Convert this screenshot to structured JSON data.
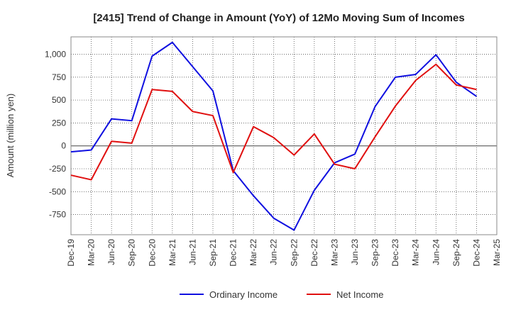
{
  "chart_data": {
    "type": "line",
    "title": "[2415]  Trend of Change in Amount (YoY) of 12Mo Moving Sum of Incomes",
    "xlabel": "",
    "ylabel": "Amount (million yen)",
    "x": [
      "Dec-19",
      "Mar-20",
      "Jun-20",
      "Sep-20",
      "Dec-20",
      "Mar-21",
      "Jun-21",
      "Sep-21",
      "Dec-21",
      "Mar-22",
      "Jun-22",
      "Sep-22",
      "Dec-22",
      "Mar-23",
      "Jun-23",
      "Sep-23",
      "Dec-23",
      "Mar-24",
      "Jun-24",
      "Sep-24",
      "Dec-24",
      "Mar-25"
    ],
    "yticks": [
      -750,
      -500,
      -250,
      0,
      250,
      500,
      750,
      1000
    ],
    "ytick_labels": [
      "-750",
      "-500",
      "-250",
      "0",
      "250",
      "500",
      "750",
      "1,000"
    ],
    "ylim": [
      -970,
      1190
    ],
    "grid": true,
    "legend_position": "bottom",
    "series": [
      {
        "name": "Ordinary Income",
        "color": "#1010e0",
        "values": [
          -65,
          -45,
          295,
          275,
          980,
          1130,
          865,
          600,
          -270,
          -545,
          -790,
          -920,
          -485,
          -185,
          -90,
          430,
          750,
          780,
          995,
          695,
          540,
          null
        ]
      },
      {
        "name": "Net Income",
        "color": "#e01010",
        "values": [
          -320,
          -370,
          50,
          30,
          615,
          595,
          375,
          330,
          -290,
          210,
          90,
          -100,
          130,
          -200,
          -250,
          100,
          435,
          715,
          890,
          665,
          615,
          null
        ]
      }
    ]
  }
}
